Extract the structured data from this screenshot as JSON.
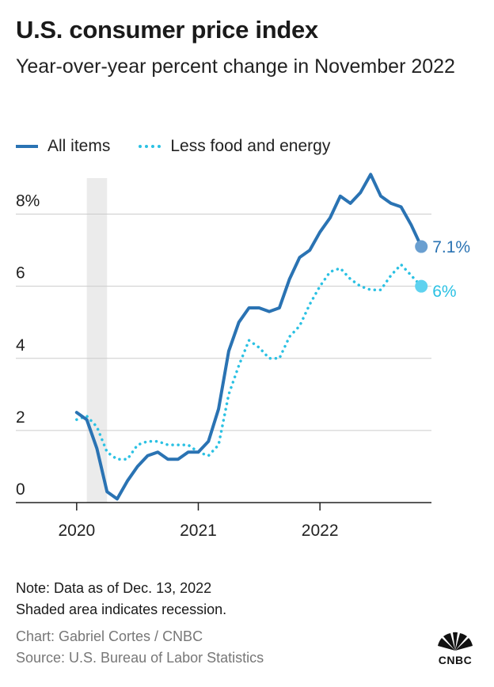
{
  "header": {
    "title": "U.S. consumer price index",
    "subtitle": "Year-over-year percent change in November 2022"
  },
  "legend": {
    "all_items": "All items",
    "less_food_energy": "Less food and energy"
  },
  "colors": {
    "all_items": "#2a73b3",
    "less_food_energy": "#2bc1e3",
    "grid": "#cccccc",
    "recession": "#ebebeb"
  },
  "chart_data": {
    "type": "line",
    "x_start": "2020-01",
    "x_end": "2022-11",
    "xlim": [
      "2019-07",
      "2022-12"
    ],
    "ylim": [
      0,
      9
    ],
    "y_ticks": [
      0,
      2,
      4,
      6,
      8
    ],
    "y_tick_labels": [
      "0",
      "2",
      "4",
      "6",
      "8%"
    ],
    "x_ticks": [
      "2020-01",
      "2021-01",
      "2022-01"
    ],
    "x_tick_labels": [
      "2020",
      "2021",
      "2022"
    ],
    "recession": [
      "2020-02",
      "2020-04"
    ],
    "series": [
      {
        "name": "All items",
        "style": "solid",
        "values": [
          2.5,
          2.3,
          1.5,
          0.3,
          0.1,
          0.6,
          1.0,
          1.3,
          1.4,
          1.2,
          1.2,
          1.4,
          1.4,
          1.7,
          2.6,
          4.2,
          5.0,
          5.4,
          5.4,
          5.3,
          5.4,
          6.2,
          6.8,
          7.0,
          7.5,
          7.9,
          8.5,
          8.3,
          8.6,
          9.1,
          8.5,
          8.3,
          8.2,
          7.7,
          7.1
        ],
        "end_label": "7.1%"
      },
      {
        "name": "Less food and energy",
        "style": "dotted",
        "values": [
          2.3,
          2.4,
          2.1,
          1.4,
          1.2,
          1.2,
          1.6,
          1.7,
          1.7,
          1.6,
          1.6,
          1.6,
          1.4,
          1.3,
          1.6,
          3.0,
          3.8,
          4.5,
          4.3,
          4.0,
          4.0,
          4.6,
          4.9,
          5.5,
          6.0,
          6.4,
          6.5,
          6.2,
          6.0,
          5.9,
          5.9,
          6.3,
          6.6,
          6.3,
          6.0
        ],
        "end_label": "6%"
      }
    ]
  },
  "footer": {
    "note1": "Note: Data as of Dec. 13, 2022",
    "note2": "Shaded area indicates recession.",
    "chart_credit": "Chart: Gabriel Cortes / CNBC",
    "source": "Source: U.S. Bureau of Labor Statistics",
    "logo_text": "CNBC"
  }
}
